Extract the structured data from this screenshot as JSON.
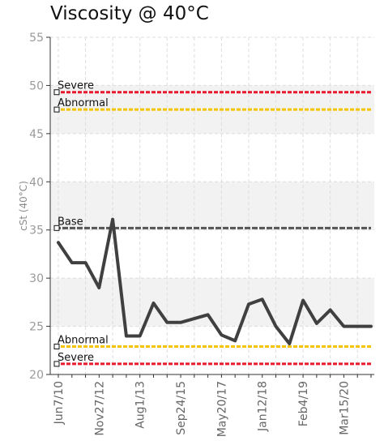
{
  "chart_data": {
    "type": "line",
    "title": "Viscosity @ 40°C",
    "ylabel": "cSt (40°C)",
    "xlabel": "",
    "ylim": [
      20,
      55
    ],
    "y_ticks": [
      20,
      25,
      30,
      35,
      40,
      45,
      50,
      55
    ],
    "grid": true,
    "x_tick_labels": [
      "Jun7/10",
      "Nov27/12",
      "Aug1/13",
      "Sep24/15",
      "May20/17",
      "Jan12/18",
      "Feb4/19",
      "Mar15/20"
    ],
    "series": [
      {
        "values": [
          33.7,
          31.6,
          31.6,
          29.0,
          36.1,
          24.0,
          24.0,
          27.4,
          25.4,
          25.4,
          25.8,
          26.2,
          24.1,
          23.5,
          27.3,
          27.8,
          25.0,
          23.2,
          27.7,
          25.3,
          26.7,
          25.0,
          25.0,
          25.0
        ],
        "color": "#404040"
      }
    ],
    "reference_lines": [
      {
        "label": "Severe",
        "value": 49.3,
        "color": "#e8192c"
      },
      {
        "label": "Abnormal",
        "value": 47.5,
        "color": "#f5c400"
      },
      {
        "label": "Base",
        "value": 35.2,
        "color": "#555555"
      },
      {
        "label": "Abnormal",
        "value": 22.9,
        "color": "#f5c400"
      },
      {
        "label": "Severe",
        "value": 21.1,
        "color": "#e8192c"
      }
    ]
  }
}
